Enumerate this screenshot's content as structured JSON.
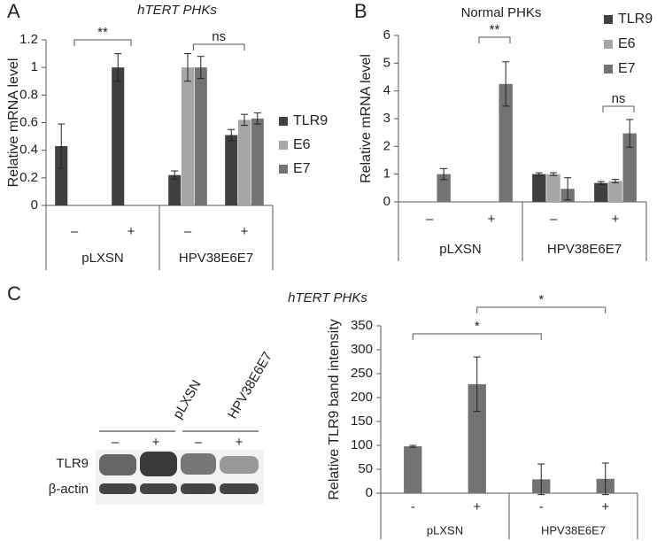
{
  "panel_labels": [
    "A",
    "B",
    "C"
  ],
  "panel_c_title": "hTERT PHKs",
  "blot": {
    "lanes": [
      "pLXSN",
      "HPV38E6E7"
    ],
    "treatments": [
      "–",
      "+",
      "–",
      "+"
    ],
    "rows": [
      "TLR9",
      "β-actin"
    ]
  },
  "chart_data": [
    {
      "type": "bar",
      "title": "hTERT PHKs",
      "y_label": "Relative mRNA level",
      "categories": [
        "–",
        "+",
        "–",
        "+"
      ],
      "groups": [
        "pLXSN",
        "HPV38E6E7"
      ],
      "series": [
        {
          "name": "TLR9",
          "color": "#404040",
          "values": [
            0.43,
            1.0,
            0.22,
            0.51
          ],
          "errors": [
            0.16,
            0.1,
            0.03,
            0.04
          ]
        },
        {
          "name": "E6",
          "color": "#a6a6a6",
          "values": [
            null,
            null,
            1.0,
            0.62
          ],
          "errors": [
            null,
            null,
            0.1,
            0.04
          ]
        },
        {
          "name": "E7",
          "color": "#737373",
          "values": [
            null,
            null,
            1.0,
            0.63
          ],
          "errors": [
            null,
            null,
            0.08,
            0.04
          ]
        }
      ],
      "ylim": [
        0,
        1.2
      ],
      "yticks": [
        0,
        0.2,
        0.4,
        0.6,
        0.8,
        1,
        1.2
      ],
      "annotations": [
        "**",
        "ns"
      ]
    },
    {
      "type": "bar",
      "title": "Normal PHKs",
      "y_label": "Relative mRNA level",
      "categories": [
        "–",
        "+",
        "–",
        "+"
      ],
      "groups": [
        "pLXSN",
        "HPV38E6E7"
      ],
      "series": [
        {
          "name": "TLR9",
          "color": "#404040",
          "values": [
            0,
            0,
            1.0,
            0.68
          ],
          "errors": [
            null,
            null,
            0.05,
            0.05
          ]
        },
        {
          "name": "E6",
          "color": "#a6a6a6",
          "values": [
            0,
            0,
            1.0,
            0.75
          ],
          "errors": [
            null,
            null,
            0.05,
            0.06
          ]
        },
        {
          "name": "E7",
          "color": "#737373",
          "values": [
            1.0,
            4.25,
            0.47,
            2.47
          ],
          "errors": [
            0.2,
            0.8,
            0.4,
            0.5
          ]
        }
      ],
      "ylim": [
        0,
        6
      ],
      "yticks": [
        0,
        1,
        2,
        3,
        4,
        5,
        6
      ],
      "annotations": [
        "**",
        "ns"
      ]
    },
    {
      "type": "bar",
      "y_label": "Relative TLR9 band intensity",
      "categories": [
        "-",
        "+",
        "-",
        "+"
      ],
      "groups": [
        "pLXSN",
        "HPV38E6E7"
      ],
      "series": [
        {
          "color": "#737373",
          "values": [
            98,
            228,
            29,
            30
          ],
          "errors": [
            2,
            57,
            32,
            33
          ]
        }
      ],
      "ylim": [
        0,
        350
      ],
      "yticks": [
        0,
        50,
        100,
        150,
        200,
        250,
        300,
        350
      ],
      "annotations": [
        "*",
        "*"
      ]
    }
  ]
}
